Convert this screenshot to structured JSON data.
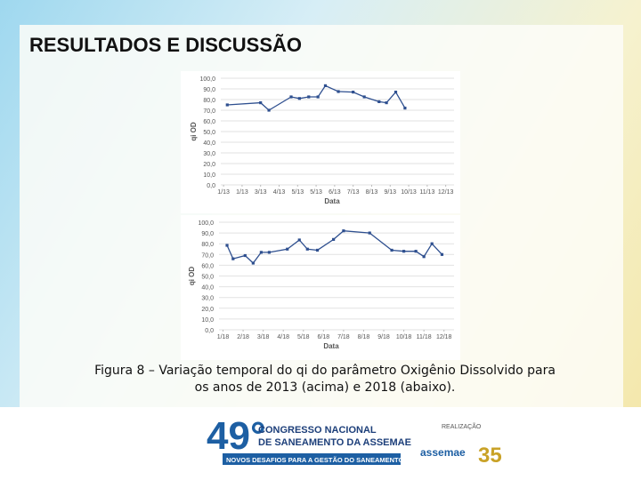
{
  "slide": {
    "title": "RESULTADOS E DISCUSSÃO",
    "caption": "Figura 8 – Variação temporal do qi do parâmetro Oxigênio Dissolvido para os anos de 2013 (acima) e 2018 (abaixo)."
  },
  "footer": {
    "edition": "49°",
    "congress": "CONGRESSO NACIONAL",
    "congress2": "DE SANEAMENTO DA ASSEMAE",
    "motto": "NOVOS DESAFIOS PARA A GESTÃO DO SANEAMENTO",
    "realization": "REALIZAÇÃO",
    "org": "assemae",
    "anniversary": "35"
  },
  "chart_data": [
    {
      "type": "line",
      "ylabel": "qi OD",
      "xlabel": "Data",
      "color": "#2e4f8f",
      "grid": true,
      "xlim": [
        -0.15,
        12.45
      ],
      "ylim": [
        0,
        100
      ],
      "xticks": [
        {
          "value": 0,
          "label": "1/13"
        },
        {
          "value": 1,
          "label": "1/13"
        },
        {
          "value": 2,
          "label": "3/13"
        },
        {
          "value": 3,
          "label": "4/13"
        },
        {
          "value": 4,
          "label": "5/13"
        },
        {
          "value": 5,
          "label": "5/13"
        },
        {
          "value": 6,
          "label": "6/13"
        },
        {
          "value": 7,
          "label": "7/13"
        },
        {
          "value": 8,
          "label": "8/13"
        },
        {
          "value": 9,
          "label": "9/13"
        },
        {
          "value": 10,
          "label": "10/13"
        },
        {
          "value": 11,
          "label": "11/13"
        },
        {
          "value": 12,
          "label": "12/13"
        }
      ],
      "yticks": [
        {
          "value": 0,
          "label": "0,0"
        },
        {
          "value": 10,
          "label": "10,0"
        },
        {
          "value": 20,
          "label": "20,0"
        },
        {
          "value": 30,
          "label": "30,0"
        },
        {
          "value": 40,
          "label": "40,0"
        },
        {
          "value": 50,
          "label": "50,0"
        },
        {
          "value": 60,
          "label": "60,0"
        },
        {
          "value": 70,
          "label": "70,0"
        },
        {
          "value": 80,
          "label": "80,0"
        },
        {
          "value": 90,
          "label": "90,0"
        },
        {
          "value": 100,
          "label": "100,0"
        }
      ],
      "x": [
        0.2,
        2.0,
        2.45,
        3.65,
        4.1,
        4.6,
        5.1,
        5.5,
        6.2,
        7.0,
        7.6,
        8.4,
        8.8,
        9.3,
        9.8
      ],
      "values": [
        75,
        77,
        70,
        82.5,
        81,
        82.5,
        82.5,
        93,
        87.5,
        87,
        82.5,
        78,
        77,
        87,
        72
      ]
    },
    {
      "type": "line",
      "ylabel": "qi OD",
      "xlabel": "Data",
      "color": "#2e4f8f",
      "grid": true,
      "xlim": [
        -0.2,
        11.5
      ],
      "ylim": [
        0,
        100
      ],
      "xticks": [
        {
          "value": 0,
          "label": "1/18"
        },
        {
          "value": 1,
          "label": "2/18"
        },
        {
          "value": 2,
          "label": "3/18"
        },
        {
          "value": 3,
          "label": "4/18"
        },
        {
          "value": 4,
          "label": "5/18"
        },
        {
          "value": 5,
          "label": "6/18"
        },
        {
          "value": 6,
          "label": "7/18"
        },
        {
          "value": 7,
          "label": "8/18"
        },
        {
          "value": 8,
          "label": "9/18"
        },
        {
          "value": 9,
          "label": "10/18"
        },
        {
          "value": 10,
          "label": "11/18"
        },
        {
          "value": 11,
          "label": "12/18"
        }
      ],
      "yticks": [
        {
          "value": 0,
          "label": "0,0"
        },
        {
          "value": 10,
          "label": "10,0"
        },
        {
          "value": 20,
          "label": "20,0"
        },
        {
          "value": 30,
          "label": "30,0"
        },
        {
          "value": 40,
          "label": "40,0"
        },
        {
          "value": 50,
          "label": "50,0"
        },
        {
          "value": 60,
          "label": "60,0"
        },
        {
          "value": 70,
          "label": "70,0"
        },
        {
          "value": 80,
          "label": "80,0"
        },
        {
          "value": 90,
          "label": "90,0"
        },
        {
          "value": 100,
          "label": "100,0"
        }
      ],
      "x": [
        0.2,
        0.5,
        1.1,
        1.5,
        1.9,
        2.3,
        3.2,
        3.8,
        4.2,
        4.7,
        5.5,
        6.0,
        7.3,
        8.4,
        9.0,
        9.6,
        10.0,
        10.4,
        10.9
      ],
      "values": [
        78.5,
        66,
        69,
        62,
        72,
        72,
        75,
        83.5,
        75,
        74,
        84,
        92,
        90,
        74,
        73,
        73,
        68,
        80,
        70
      ]
    }
  ]
}
